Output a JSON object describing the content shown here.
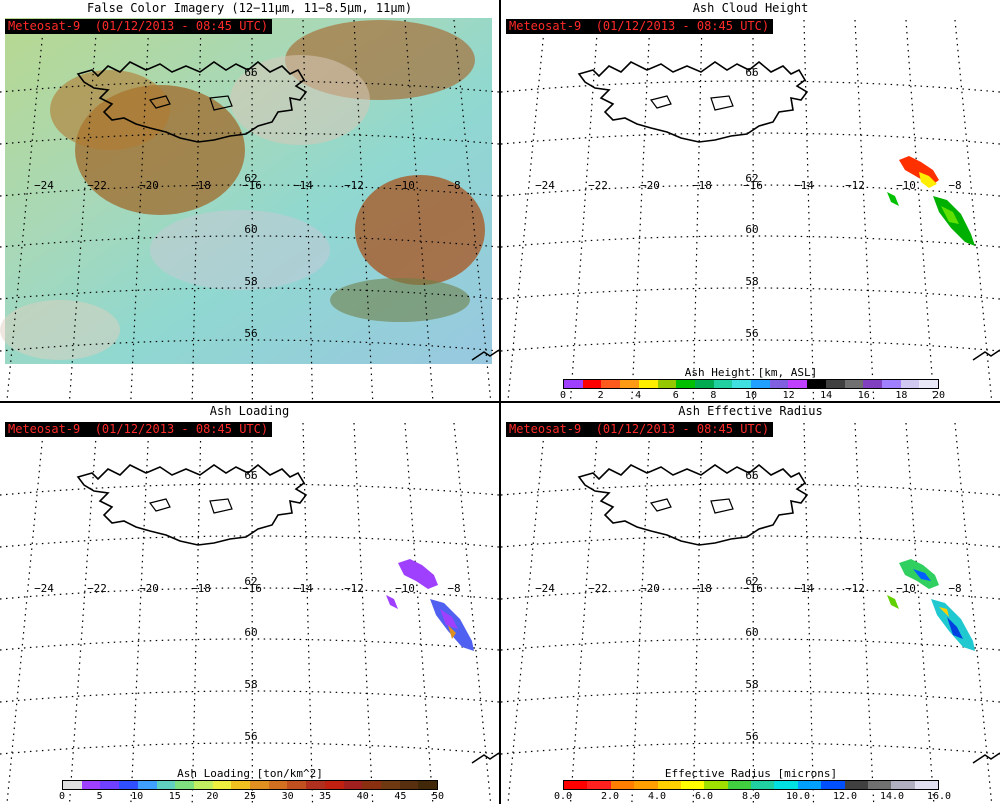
{
  "satellite_label": "Meteosat-9  (01/12/2013 - 08:45 UTC)",
  "longitude_labels": [
    "−24",
    "−22",
    "−20",
    "−18",
    "−16",
    "−14",
    "−12",
    "−10",
    "−8"
  ],
  "latitude_labels": [
    "62",
    "60",
    "58",
    "56"
  ],
  "top_latitude_label": "66",
  "panels": [
    {
      "id": "false-color",
      "title": "False Color Imagery (12−11μm, 11−8.5μm, 11μm)"
    },
    {
      "id": "ash-height",
      "title": "Ash Cloud Height",
      "colorbar": {
        "label": "Ash Height [km, ASL]",
        "ticks": [
          "0",
          "2",
          "4",
          "6",
          "8",
          "10",
          "12",
          "14",
          "16",
          "18",
          "20"
        ],
        "colors": [
          "#a040ff",
          "#ff0000",
          "#ff5a1e",
          "#ff9a14",
          "#ffee00",
          "#96c800",
          "#00c000",
          "#00aa50",
          "#20d0a0",
          "#40e0e0",
          "#20a0ff",
          "#8060e0",
          "#c040ff",
          "#000000",
          "#404040",
          "#707070",
          "#8040c0",
          "#a080ff",
          "#d0c8f0",
          "#e8e8f8"
        ]
      }
    },
    {
      "id": "ash-loading",
      "title": "Ash Loading",
      "colorbar": {
        "label": "Ash Loading [ton/km^2]",
        "ticks": [
          "0",
          "5",
          "10",
          "15",
          "20",
          "25",
          "30",
          "35",
          "40",
          "45",
          "50"
        ],
        "colors": [
          "#e0e0e0",
          "#a040ff",
          "#7040ff",
          "#3050ff",
          "#40a0ff",
          "#60d0c0",
          "#80e080",
          "#c0ee60",
          "#eeee40",
          "#f0c020",
          "#e09020",
          "#d07020",
          "#c05020",
          "#b03020",
          "#c02010",
          "#a02020",
          "#8a3010",
          "#6e3810",
          "#583010",
          "#402808"
        ]
      }
    },
    {
      "id": "effective-radius",
      "title": "Ash Effective Radius",
      "colorbar": {
        "label": "Effective Radius [microns]",
        "ticks": [
          "0.0",
          "2.0",
          "4.0",
          "6.0",
          "8.0",
          "10.0",
          "12.0",
          "14.0",
          "16.0"
        ],
        "colors": [
          "#ff0000",
          "#ff2020",
          "#ff8000",
          "#ffa000",
          "#ffd000",
          "#ffff00",
          "#a0e000",
          "#40d040",
          "#20d0a0",
          "#00e0e0",
          "#00a0ff",
          "#0050ff",
          "#404040",
          "#707070",
          "#b0b0c0",
          "#e0e0f0"
        ]
      }
    }
  ]
}
